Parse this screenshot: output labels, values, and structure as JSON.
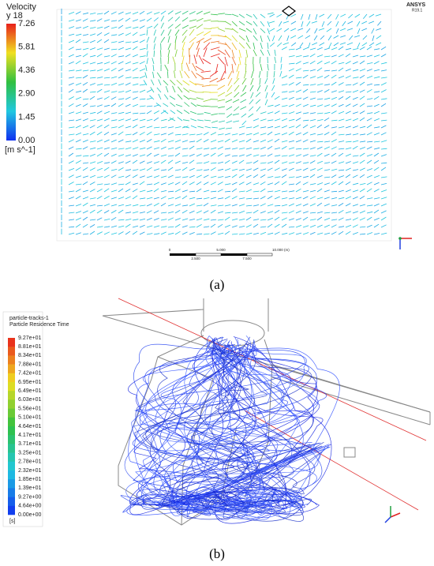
{
  "panel_a": {
    "legend": {
      "title": "Velocity",
      "subtitle": "y 18",
      "labels": [
        "7.26",
        "5.81",
        "4.36",
        "2.90",
        "1.45",
        "0.00"
      ],
      "unit": "[m s^-1]"
    },
    "brand": "ANSYS",
    "version": "R19.1",
    "scale": {
      "top": [
        "0",
        "5.000",
        "10.000 (m)"
      ],
      "bottom": [
        "2.500",
        "7.500"
      ]
    },
    "caption": "(a)"
  },
  "panel_b": {
    "title": "particle-tracks-1",
    "subtitle": "Particle Residence Time",
    "legend_labels": [
      "9.27e+01",
      "8.81e+01",
      "8.34e+01",
      "7.88e+01",
      "7.42e+01",
      "6.95e+01",
      "6.49e+01",
      "6.03e+01",
      "5.56e+01",
      "5.10e+01",
      "4.64e+01",
      "4.17e+01",
      "3.71e+01",
      "3.25e+01",
      "2.78e+01",
      "2.32e+01",
      "1.85e+01",
      "1.39e+01",
      "9.27e+00",
      "4.64e+00",
      "0.00e+00"
    ],
    "unit": "[s]",
    "caption": "(b)"
  }
}
